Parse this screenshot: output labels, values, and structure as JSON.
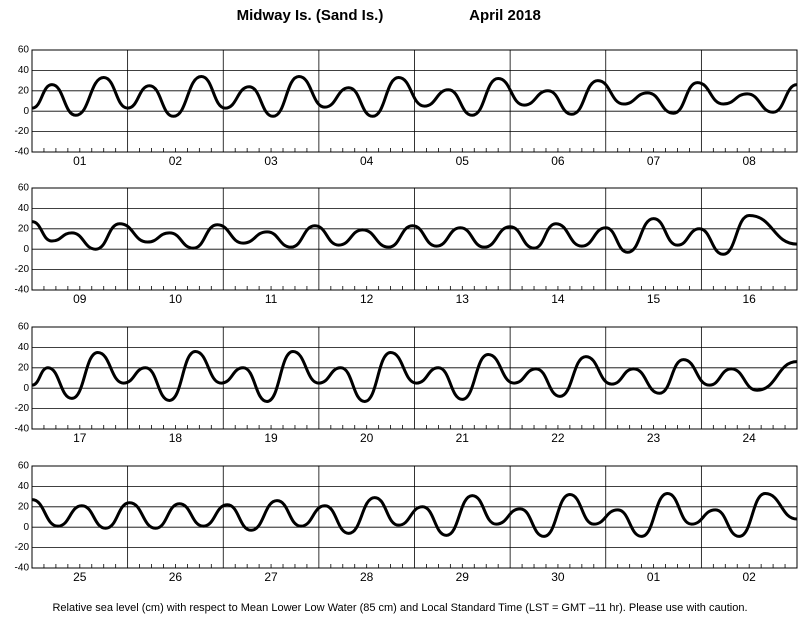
{
  "title": "Midway Is. (Sand Is.)",
  "subtitle": "April   2018",
  "footnote": "Relative sea level (cm) with respect to Mean Lower Low Water (85 cm) and Local Standard Time (LST = GMT –11 hr). Please use with caution.",
  "chart_data": [
    {
      "type": "line",
      "color": "#000000",
      "categories": [
        "01",
        "02",
        "03",
        "04",
        "05",
        "06",
        "07",
        "08"
      ],
      "xlim": [
        0,
        192
      ],
      "ylim": [
        -40,
        60
      ],
      "yticks": [
        -40,
        -20,
        0,
        20,
        40,
        60
      ],
      "grid": true,
      "x": [
        0,
        5,
        11,
        18,
        24,
        29.5,
        35.5,
        42.5,
        48.5,
        54.5,
        60.5,
        67,
        73.5,
        79.5,
        85.5,
        92,
        98.5,
        104.5,
        110.5,
        117,
        123.5,
        129.5,
        135.5,
        142,
        148.5,
        154.5,
        161,
        167,
        173.5,
        179.5,
        186,
        192
      ],
      "values": [
        3,
        26,
        -4,
        33,
        3,
        25,
        -5,
        34,
        3,
        24,
        -5,
        34,
        4,
        23,
        -5,
        33,
        5,
        21,
        -4,
        32,
        6,
        20,
        -3,
        30,
        7,
        18,
        -2,
        28,
        7,
        17,
        -1,
        26
      ]
    },
    {
      "type": "line",
      "color": "#000000",
      "categories": [
        "09",
        "10",
        "11",
        "12",
        "13",
        "14",
        "15",
        "16"
      ],
      "xlim": [
        0,
        192
      ],
      "ylim": [
        -40,
        60
      ],
      "yticks": [
        -40,
        -20,
        0,
        20,
        40,
        60
      ],
      "grid": true,
      "x": [
        0,
        5,
        10,
        16,
        22,
        29,
        34.5,
        40.5,
        46.5,
        53,
        59,
        65,
        71,
        77,
        83,
        89.5,
        95.5,
        101.5,
        107.5,
        113.5,
        120,
        126,
        131.5,
        138,
        144,
        149.5,
        156,
        162,
        167.5,
        173.5,
        180,
        192
      ],
      "values": [
        27,
        8,
        16,
        0,
        25,
        7,
        16,
        1,
        24,
        6,
        17,
        2,
        23,
        4,
        19,
        2,
        23,
        3,
        21,
        2,
        22,
        1,
        25,
        3,
        21,
        -3,
        30,
        4,
        20,
        -5,
        33,
        5
      ]
    },
    {
      "type": "line",
      "color": "#000000",
      "categories": [
        "17",
        "18",
        "19",
        "20",
        "21",
        "22",
        "23",
        "24"
      ],
      "xlim": [
        0,
        192
      ],
      "ylim": [
        -40,
        60
      ],
      "yticks": [
        -40,
        -20,
        0,
        20,
        40,
        60
      ],
      "grid": true,
      "x": [
        0,
        4,
        10,
        16.5,
        23,
        28.5,
        34.5,
        41,
        47.5,
        53,
        59,
        65.5,
        72,
        77.5,
        83.5,
        90,
        96.5,
        102,
        108,
        114.5,
        121,
        126.5,
        132.5,
        139,
        145.5,
        151,
        157.5,
        163.5,
        170,
        175.5,
        182,
        192
      ],
      "values": [
        3,
        20,
        -10,
        35,
        5,
        20,
        -12,
        36,
        5,
        20,
        -13,
        36,
        5,
        20,
        -13,
        35,
        5,
        20,
        -11,
        33,
        5,
        19,
        -8,
        31,
        4,
        19,
        -5,
        28,
        3,
        19,
        -2,
        26
      ]
    },
    {
      "type": "line",
      "color": "#000000",
      "categories": [
        "25",
        "26",
        "27",
        "28",
        "29",
        "30",
        "01",
        "02"
      ],
      "xlim": [
        0,
        192
      ],
      "ylim": [
        -40,
        60
      ],
      "yticks": [
        -40,
        -20,
        0,
        20,
        40,
        60
      ],
      "grid": true,
      "x": [
        0,
        6.5,
        12.5,
        18.5,
        24.5,
        31,
        37,
        43,
        49,
        55,
        61.5,
        67.5,
        73.5,
        79.5,
        86,
        92,
        98,
        104,
        110.5,
        116.5,
        122.5,
        128.5,
        135,
        141,
        147,
        153,
        159.5,
        165.5,
        171.5,
        177.5,
        184,
        192
      ],
      "values": [
        27,
        1,
        21,
        -1,
        24,
        -1,
        23,
        1,
        22,
        -3,
        26,
        1,
        21,
        -6,
        29,
        2,
        20,
        -8,
        31,
        3,
        18,
        -9,
        32,
        3,
        17,
        -9,
        33,
        3,
        17,
        -9,
        33,
        8
      ]
    }
  ]
}
